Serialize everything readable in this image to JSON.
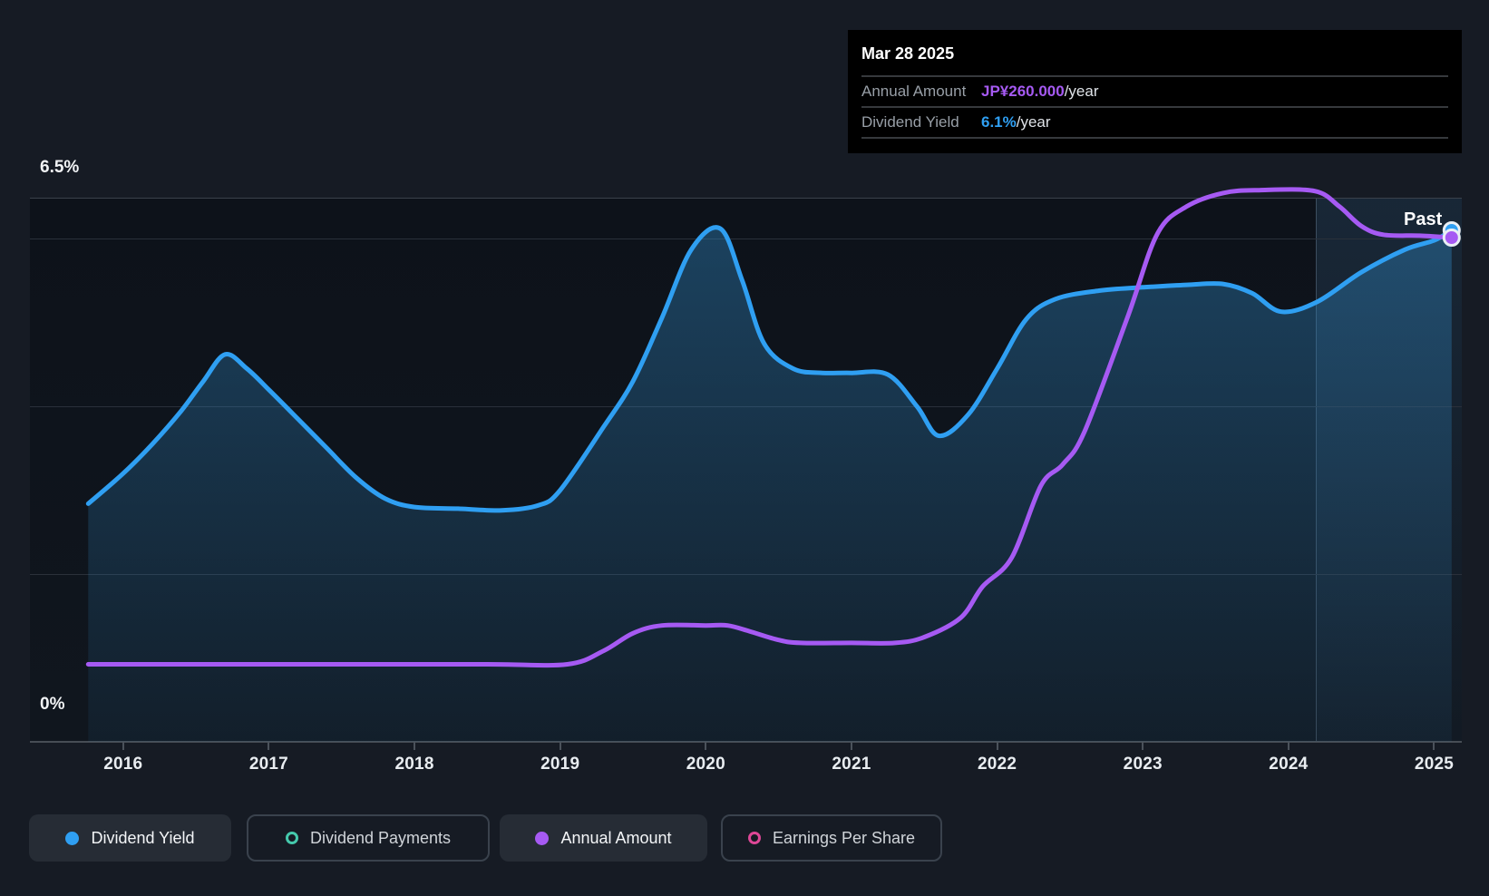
{
  "page": {
    "background": "#161B24"
  },
  "tooltip": {
    "date": "Mar 28 2025",
    "rows": [
      {
        "label": "Annual Amount",
        "value": "JP¥260.000",
        "suffix": "/year",
        "value_color": "#A65AF3"
      },
      {
        "label": "Dividend Yield",
        "value": "6.1%",
        "suffix": "/year",
        "value_color": "#2F9FF2"
      }
    ]
  },
  "chart_data": {
    "type": "area",
    "title": "Dividend history",
    "x_ticks": [
      2016,
      2017,
      2018,
      2019,
      2020,
      2021,
      2022,
      2023,
      2024,
      2025
    ],
    "x_domain": [
      2015.36,
      2025.19
    ],
    "y_axis": {
      "top_label": "6.5%",
      "bottom_label": "0%",
      "yield_domain": [
        0,
        6.489
      ],
      "amount_domain": [
        0,
        280.6
      ],
      "gridlines_yield": [
        6,
        4,
        2
      ]
    },
    "past_band": {
      "start_year": 2024.19,
      "label": "Past"
    },
    "legend_position": "bottom",
    "series": [
      {
        "name": "Dividend Yield",
        "unit": "%",
        "axis": "yield",
        "color": "#2F9FF2",
        "fill": true,
        "fill_top": "rgba(47,132,190,0.42)",
        "fill_bottom": "rgba(47,132,190,0.08)",
        "points": [
          [
            2015.76,
            2.84
          ],
          [
            2016.0,
            3.2
          ],
          [
            2016.2,
            3.55
          ],
          [
            2016.4,
            3.95
          ],
          [
            2016.55,
            4.3
          ],
          [
            2016.7,
            4.62
          ],
          [
            2016.85,
            4.45
          ],
          [
            2017.0,
            4.2
          ],
          [
            2017.2,
            3.85
          ],
          [
            2017.4,
            3.5
          ],
          [
            2017.6,
            3.15
          ],
          [
            2017.8,
            2.9
          ],
          [
            2018.0,
            2.8
          ],
          [
            2018.3,
            2.78
          ],
          [
            2018.6,
            2.76
          ],
          [
            2018.85,
            2.82
          ],
          [
            2019.0,
            3.0
          ],
          [
            2019.3,
            3.76
          ],
          [
            2019.5,
            4.3
          ],
          [
            2019.7,
            5.06
          ],
          [
            2019.9,
            5.87
          ],
          [
            2020.1,
            6.12
          ],
          [
            2020.25,
            5.5
          ],
          [
            2020.4,
            4.75
          ],
          [
            2020.6,
            4.45
          ],
          [
            2020.8,
            4.4
          ],
          [
            2021.0,
            4.4
          ],
          [
            2021.25,
            4.38
          ],
          [
            2021.45,
            4.0
          ],
          [
            2021.6,
            3.65
          ],
          [
            2021.8,
            3.9
          ],
          [
            2022.0,
            4.45
          ],
          [
            2022.2,
            5.04
          ],
          [
            2022.4,
            5.28
          ],
          [
            2022.7,
            5.38
          ],
          [
            2023.0,
            5.42
          ],
          [
            2023.3,
            5.45
          ],
          [
            2023.55,
            5.46
          ],
          [
            2023.75,
            5.35
          ],
          [
            2023.95,
            5.13
          ],
          [
            2024.2,
            5.25
          ],
          [
            2024.5,
            5.6
          ],
          [
            2024.8,
            5.87
          ],
          [
            2025.0,
            5.98
          ],
          [
            2025.12,
            6.1
          ]
        ]
      },
      {
        "name": "Annual Amount",
        "unit": "JP¥/year",
        "axis": "amount",
        "color": "#A65AF3",
        "fill": false,
        "points": [
          [
            2015.76,
            40
          ],
          [
            2016.5,
            40
          ],
          [
            2017.5,
            40
          ],
          [
            2018.5,
            40
          ],
          [
            2019.05,
            40
          ],
          [
            2019.3,
            47
          ],
          [
            2019.5,
            56
          ],
          [
            2019.7,
            60
          ],
          [
            2020.0,
            60
          ],
          [
            2020.15,
            60
          ],
          [
            2020.3,
            57
          ],
          [
            2020.5,
            52.5
          ],
          [
            2020.65,
            51
          ],
          [
            2021.0,
            51
          ],
          [
            2021.3,
            51
          ],
          [
            2021.5,
            54
          ],
          [
            2021.75,
            64
          ],
          [
            2021.9,
            80
          ],
          [
            2022.1,
            95
          ],
          [
            2022.3,
            132
          ],
          [
            2022.45,
            143
          ],
          [
            2022.6,
            160
          ],
          [
            2022.9,
            220
          ],
          [
            2023.1,
            262
          ],
          [
            2023.3,
            276
          ],
          [
            2023.55,
            283
          ],
          [
            2023.8,
            284.5
          ],
          [
            2024.18,
            284
          ],
          [
            2024.35,
            276
          ],
          [
            2024.5,
            266
          ],
          [
            2024.65,
            261.5
          ],
          [
            2024.9,
            261
          ],
          [
            2025.12,
            260
          ]
        ]
      }
    ],
    "marker_stroke": "#E9EFF5"
  },
  "legend": {
    "buttons": [
      {
        "label": "Dividend Yield",
        "marker": "dot",
        "color": "#2F9FF2",
        "active": true
      },
      {
        "label": "Dividend Payments",
        "marker": "ring",
        "color": "#45C9AC",
        "active": false
      },
      {
        "label": "Annual Amount",
        "marker": "dot",
        "color": "#A65AF3",
        "active": true
      },
      {
        "label": "Earnings Per Share",
        "marker": "ring",
        "color": "#DD4796",
        "active": false
      }
    ]
  }
}
